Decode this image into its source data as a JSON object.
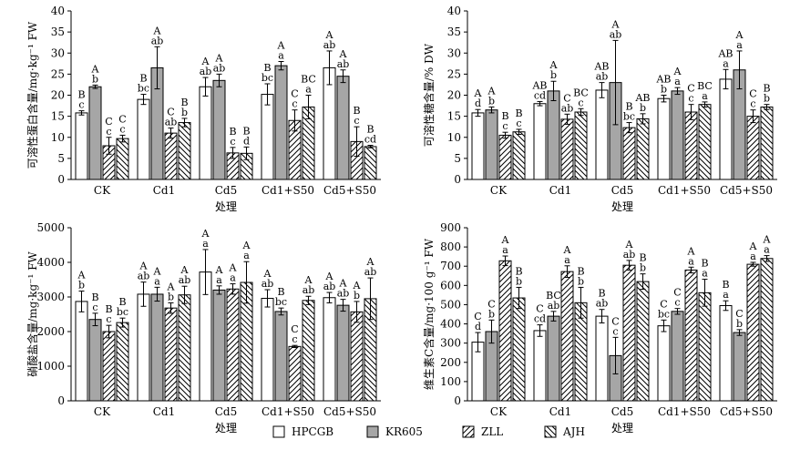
{
  "legend": {
    "items": [
      {
        "name": "HPCGB",
        "fill": "white"
      },
      {
        "name": "KR605",
        "fill": "gray"
      },
      {
        "name": "ZLL",
        "fill": "hatch-fwd"
      },
      {
        "name": "AJH",
        "fill": "hatch-back"
      }
    ]
  },
  "colors": {
    "bar_gray": "#a6a6a6",
    "stroke": "#000000",
    "background": "#ffffff"
  },
  "chart_data": [
    {
      "type": "bar",
      "panel": "top-left",
      "categories": [
        "CK",
        "Cd1",
        "Cd5",
        "Cd1+S50",
        "Cd5+S50"
      ],
      "xlabel": "处理",
      "ylabel": "可溶性蛋白含量/mg·kg⁻¹ FW",
      "ylim": [
        0,
        40
      ],
      "yticks": [
        0,
        5,
        10,
        15,
        20,
        25,
        30,
        35,
        40
      ],
      "series": [
        {
          "name": "HPCGB",
          "values": [
            15.8,
            19.0,
            22.0,
            20.2,
            26.5
          ],
          "errors": [
            0.5,
            1.2,
            2.2,
            2.5,
            4.0
          ]
        },
        {
          "name": "KR605",
          "values": [
            22.0,
            26.5,
            23.5,
            27.0,
            24.5
          ],
          "errors": [
            0.4,
            5.0,
            1.5,
            1.0,
            1.5
          ]
        },
        {
          "name": "ZLL",
          "values": [
            8.0,
            11.0,
            6.3,
            14.0,
            9.0
          ],
          "errors": [
            2.0,
            1.2,
            1.3,
            2.5,
            3.5
          ]
        },
        {
          "name": "AJH",
          "values": [
            9.7,
            13.5,
            6.2,
            17.2,
            7.8
          ],
          "errors": [
            0.8,
            1.0,
            1.5,
            2.8,
            0.3
          ]
        }
      ],
      "sig_upper": [
        [
          "B",
          "A",
          "C",
          "C"
        ],
        [
          "B",
          "A",
          "C",
          "B"
        ],
        [
          "A",
          "A",
          "B",
          "B"
        ],
        [
          "B",
          "A",
          "C",
          "BC"
        ],
        [
          "A",
          "A",
          "B",
          "B"
        ]
      ],
      "sig_lower": [
        [
          "c",
          "b",
          "c",
          "c"
        ],
        [
          "bc",
          "ab",
          "ab",
          "b"
        ],
        [
          "ab",
          "ab",
          "c",
          "d"
        ],
        [
          "bc",
          "a",
          "c",
          "a"
        ],
        [
          "ab",
          "ab",
          "c",
          "cd"
        ]
      ]
    },
    {
      "type": "bar",
      "panel": "top-right",
      "categories": [
        "CK",
        "Cd1",
        "Cd5",
        "Cd1+S50",
        "Cd5+S50"
      ],
      "xlabel": "处理",
      "ylabel": "可溶性糖含量/% DW",
      "ylim": [
        0,
        40
      ],
      "yticks": [
        0,
        5,
        10,
        15,
        20,
        25,
        30,
        35,
        40
      ],
      "series": [
        {
          "name": "HPCGB",
          "values": [
            15.8,
            18.0,
            21.2,
            19.2,
            23.8
          ],
          "errors": [
            0.8,
            0.5,
            1.8,
            0.8,
            2.3
          ]
        },
        {
          "name": "KR605",
          "values": [
            16.5,
            21.0,
            23.0,
            21.0,
            26.0
          ],
          "errors": [
            0.7,
            2.3,
            10.0,
            0.8,
            4.5
          ]
        },
        {
          "name": "ZLL",
          "values": [
            10.5,
            14.3,
            12.3,
            16.0,
            15.0
          ],
          "errors": [
            0.7,
            1.2,
            1.2,
            1.8,
            1.5
          ]
        },
        {
          "name": "AJH",
          "values": [
            11.3,
            16.0,
            14.4,
            17.8,
            17.2
          ],
          "errors": [
            0.6,
            0.8,
            1.2,
            0.6,
            0.6
          ]
        }
      ],
      "sig_upper": [
        [
          "A",
          "A",
          "B",
          "B"
        ],
        [
          "AB",
          "A",
          "C",
          "BC"
        ],
        [
          "AB",
          "A",
          "B",
          "AB"
        ],
        [
          "AB",
          "A",
          "C",
          "BC"
        ],
        [
          "AB",
          "A",
          "C",
          "B"
        ]
      ],
      "sig_lower": [
        [
          "d",
          "b",
          "c",
          "c"
        ],
        [
          "cd",
          "b",
          "ab",
          "c"
        ],
        [
          "ab",
          "ab",
          "bc",
          "b"
        ],
        [
          "b",
          "a",
          "c",
          "a"
        ],
        [
          "a",
          "a",
          "c",
          "b"
        ]
      ]
    },
    {
      "type": "bar",
      "panel": "bottom-left",
      "categories": [
        "CK",
        "Cd1",
        "Cd5",
        "Cd1+S50",
        "Cd5+S50"
      ],
      "xlabel": "处理",
      "ylabel": "硝酸盐含量/mg·kg⁻¹ FW",
      "ylim": [
        0,
        5000
      ],
      "yticks": [
        0,
        1000,
        2000,
        3000,
        4000,
        5000
      ],
      "series": [
        {
          "name": "HPCGB",
          "values": [
            2870,
            3080,
            3720,
            2960,
            2980
          ],
          "errors": [
            300,
            350,
            650,
            250,
            150
          ]
        },
        {
          "name": "KR605",
          "values": [
            2350,
            3080,
            3200,
            2580,
            2760
          ],
          "errors": [
            180,
            200,
            120,
            100,
            170
          ]
        },
        {
          "name": "ZLL",
          "values": [
            2000,
            2680,
            3230,
            1570,
            2570
          ],
          "errors": [
            180,
            150,
            150,
            30,
            300
          ]
        },
        {
          "name": "AJH",
          "values": [
            2260,
            3060,
            3420,
            2900,
            2950
          ],
          "errors": [
            130,
            250,
            600,
            120,
            600
          ]
        }
      ],
      "sig_upper": [
        [
          "A",
          "B",
          "B",
          "B"
        ],
        [
          "A",
          "A",
          "A",
          "A"
        ],
        [
          "A",
          "A",
          "A",
          "A"
        ],
        [
          "A",
          "B",
          "C",
          "A"
        ],
        [
          "A",
          "A",
          "A",
          "A"
        ]
      ],
      "sig_lower": [
        [
          "b",
          "c",
          "c",
          "bc"
        ],
        [
          "ab",
          "a",
          "b",
          "ab"
        ],
        [
          "a",
          "a",
          "a",
          "a"
        ],
        [
          "ab",
          "bc",
          "c",
          "ab"
        ],
        [
          "ab",
          "ab",
          "b",
          "ab"
        ]
      ]
    },
    {
      "type": "bar",
      "panel": "bottom-right",
      "categories": [
        "CK",
        "Cd1",
        "Cd5",
        "Cd1+S50",
        "Cd5+S50"
      ],
      "xlabel": "处理",
      "ylabel": "维生素C含量/mg·100 g⁻¹ FW",
      "ylim": [
        0,
        900
      ],
      "yticks": [
        0,
        100,
        200,
        300,
        400,
        500,
        600,
        700,
        800,
        900
      ],
      "series": [
        {
          "name": "HPCGB",
          "values": [
            305,
            365,
            440,
            390,
            495
          ],
          "errors": [
            50,
            30,
            35,
            30,
            25
          ]
        },
        {
          "name": "KR605",
          "values": [
            360,
            440,
            235,
            465,
            355
          ],
          "errors": [
            60,
            25,
            95,
            15,
            15
          ]
        },
        {
          "name": "ZLL",
          "values": [
            728,
            672,
            705,
            680,
            710
          ],
          "errors": [
            25,
            30,
            25,
            15,
            10
          ]
        },
        {
          "name": "AJH",
          "values": [
            535,
            510,
            620,
            562,
            740
          ],
          "errors": [
            55,
            80,
            40,
            70,
            15
          ]
        }
      ],
      "sig_upper": [
        [
          "C",
          "C",
          "A",
          "B"
        ],
        [
          "C",
          "BC",
          "A",
          "B"
        ],
        [
          "B",
          "C",
          "A",
          "B"
        ],
        [
          "C",
          "C",
          "A",
          "B"
        ],
        [
          "B",
          "C",
          "A",
          "A"
        ]
      ],
      "sig_lower": [
        [
          "d",
          "b",
          "a",
          "b"
        ],
        [
          "cd",
          "ab",
          "a",
          "b"
        ],
        [
          "ab",
          "c",
          "ab",
          "b"
        ],
        [
          "bc",
          "c",
          "a",
          "a"
        ],
        [
          "a",
          "b",
          "a",
          "a"
        ]
      ]
    }
  ]
}
